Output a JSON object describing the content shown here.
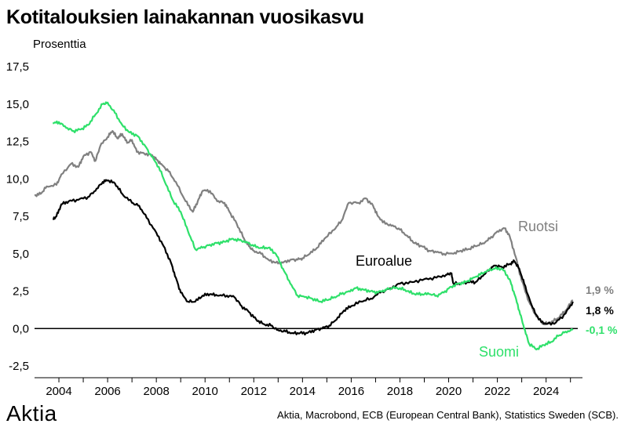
{
  "title": "Kotitalouksien lainakannan vuosikasvu",
  "unit_label": "Prosenttia",
  "logo": "Aktia",
  "source": "Aktia, Macrobond, ECB (European Central Bank), Statistics Sweden (SCB).",
  "colors": {
    "Ruotsi": "#808080",
    "Euroalue": "#000000",
    "Suomi": "#2ee06a"
  },
  "chart_data": {
    "type": "line",
    "title": "Kotitalouksien lainakannan vuosikasvu",
    "ylabel": "Prosenttia",
    "xlim": [
      2003,
      2025.3
    ],
    "ylim": [
      -2.5,
      17.5
    ],
    "y_ticks": [
      "17,5",
      "15,0",
      "12,5",
      "10,0",
      "7,5",
      "5,0",
      "2,5",
      "0,0",
      "-2,5"
    ],
    "x_ticks": [
      "2004",
      "2006",
      "2008",
      "2010",
      "2012",
      "2014",
      "2016",
      "2018",
      "2020",
      "2022",
      "2024"
    ],
    "grid": false,
    "series": [
      {
        "name": "Ruotsi",
        "end_label": "1,9 %",
        "points": [
          [
            2003.0,
            8.9
          ],
          [
            2003.25,
            9.0
          ],
          [
            2003.5,
            9.5
          ],
          [
            2003.9,
            9.6
          ],
          [
            2004.1,
            10.3
          ],
          [
            2004.5,
            11.0
          ],
          [
            2004.8,
            10.8
          ],
          [
            2005.0,
            11.5
          ],
          [
            2005.3,
            11.8
          ],
          [
            2005.5,
            11.2
          ],
          [
            2005.7,
            12.2
          ],
          [
            2006.0,
            12.8
          ],
          [
            2006.2,
            13.2
          ],
          [
            2006.4,
            12.7
          ],
          [
            2006.6,
            13.0
          ],
          [
            2006.8,
            12.4
          ],
          [
            2007.0,
            12.6
          ],
          [
            2007.2,
            11.8
          ],
          [
            2007.5,
            11.7
          ],
          [
            2007.8,
            11.6
          ],
          [
            2008.0,
            11.3
          ],
          [
            2008.2,
            11.0
          ],
          [
            2008.5,
            10.5
          ],
          [
            2008.8,
            9.8
          ],
          [
            2009.2,
            8.5
          ],
          [
            2009.5,
            7.8
          ],
          [
            2009.7,
            8.5
          ],
          [
            2009.9,
            9.2
          ],
          [
            2010.2,
            9.2
          ],
          [
            2010.5,
            8.5
          ],
          [
            2010.8,
            8.4
          ],
          [
            2011.0,
            7.8
          ],
          [
            2011.3,
            7.0
          ],
          [
            2011.6,
            6.0
          ],
          [
            2011.8,
            5.5
          ],
          [
            2012.0,
            5.2
          ],
          [
            2012.3,
            5.0
          ],
          [
            2012.6,
            4.6
          ],
          [
            2012.9,
            4.4
          ],
          [
            2013.2,
            4.4
          ],
          [
            2013.5,
            4.6
          ],
          [
            2013.8,
            4.6
          ],
          [
            2014.0,
            4.7
          ],
          [
            2014.3,
            5.0
          ],
          [
            2014.6,
            5.4
          ],
          [
            2014.9,
            6.0
          ],
          [
            2015.3,
            6.6
          ],
          [
            2015.6,
            7.2
          ],
          [
            2015.9,
            8.4
          ],
          [
            2016.3,
            8.4
          ],
          [
            2016.6,
            8.7
          ],
          [
            2016.9,
            8.2
          ],
          [
            2017.1,
            7.5
          ],
          [
            2017.4,
            7.0
          ],
          [
            2017.7,
            6.9
          ],
          [
            2018.0,
            6.6
          ],
          [
            2018.3,
            6.2
          ],
          [
            2018.6,
            5.7
          ],
          [
            2018.9,
            5.5
          ],
          [
            2019.2,
            5.2
          ],
          [
            2019.5,
            5.1
          ],
          [
            2019.8,
            5.0
          ],
          [
            2020.2,
            5.0
          ],
          [
            2020.5,
            5.2
          ],
          [
            2020.8,
            5.3
          ],
          [
            2021.1,
            5.5
          ],
          [
            2021.4,
            5.7
          ],
          [
            2021.7,
            6.0
          ],
          [
            2022.0,
            6.5
          ],
          [
            2022.3,
            6.7
          ],
          [
            2022.5,
            6.2
          ],
          [
            2022.75,
            4.8
          ],
          [
            2023.0,
            3.2
          ],
          [
            2023.3,
            1.8
          ],
          [
            2023.6,
            0.8
          ],
          [
            2023.9,
            0.3
          ],
          [
            2024.2,
            0.4
          ],
          [
            2024.5,
            0.7
          ],
          [
            2024.8,
            1.2
          ],
          [
            2025.1,
            1.9
          ]
        ]
      },
      {
        "name": "Euroalue",
        "end_label": "1,8 %",
        "points": [
          [
            2003.75,
            7.3
          ],
          [
            2003.9,
            7.5
          ],
          [
            2004.1,
            8.3
          ],
          [
            2004.4,
            8.5
          ],
          [
            2004.8,
            8.6
          ],
          [
            2005.2,
            8.8
          ],
          [
            2005.5,
            9.2
          ],
          [
            2005.8,
            9.8
          ],
          [
            2006.0,
            9.9
          ],
          [
            2006.3,
            9.7
          ],
          [
            2006.6,
            9.0
          ],
          [
            2007.0,
            8.4
          ],
          [
            2007.3,
            8.2
          ],
          [
            2007.6,
            7.4
          ],
          [
            2008.0,
            6.4
          ],
          [
            2008.3,
            5.5
          ],
          [
            2008.6,
            4.4
          ],
          [
            2008.8,
            3.4
          ],
          [
            2009.0,
            2.4
          ],
          [
            2009.3,
            1.8
          ],
          [
            2009.6,
            1.8
          ],
          [
            2009.9,
            2.2
          ],
          [
            2010.2,
            2.3
          ],
          [
            2010.5,
            2.2
          ],
          [
            2010.9,
            2.2
          ],
          [
            2011.2,
            2.1
          ],
          [
            2011.5,
            1.5
          ],
          [
            2011.8,
            1.1
          ],
          [
            2012.1,
            0.6
          ],
          [
            2012.4,
            0.3
          ],
          [
            2012.7,
            0.2
          ],
          [
            2013.0,
            -0.1
          ],
          [
            2013.3,
            -0.2
          ],
          [
            2013.6,
            -0.3
          ],
          [
            2013.9,
            -0.3
          ],
          [
            2014.2,
            -0.3
          ],
          [
            2014.5,
            -0.1
          ],
          [
            2014.8,
            0.0
          ],
          [
            2015.1,
            0.2
          ],
          [
            2015.4,
            0.6
          ],
          [
            2015.7,
            1.2
          ],
          [
            2016.0,
            1.5
          ],
          [
            2016.4,
            1.8
          ],
          [
            2016.8,
            2.0
          ],
          [
            2017.2,
            2.4
          ],
          [
            2017.6,
            2.7
          ],
          [
            2018.0,
            3.0
          ],
          [
            2018.5,
            3.1
          ],
          [
            2019.0,
            3.3
          ],
          [
            2019.5,
            3.4
          ],
          [
            2019.9,
            3.6
          ],
          [
            2020.1,
            3.7
          ],
          [
            2020.2,
            3.0
          ],
          [
            2020.5,
            3.0
          ],
          [
            2020.8,
            3.1
          ],
          [
            2021.1,
            3.1
          ],
          [
            2021.4,
            3.5
          ],
          [
            2021.7,
            4.0
          ],
          [
            2021.9,
            4.2
          ],
          [
            2022.2,
            4.1
          ],
          [
            2022.5,
            4.3
          ],
          [
            2022.7,
            4.5
          ],
          [
            2022.9,
            4.0
          ],
          [
            2023.1,
            3.0
          ],
          [
            2023.4,
            1.6
          ],
          [
            2023.7,
            0.6
          ],
          [
            2024.0,
            0.3
          ],
          [
            2024.4,
            0.4
          ],
          [
            2024.8,
            1.0
          ],
          [
            2025.1,
            1.8
          ]
        ]
      },
      {
        "name": "Suomi",
        "end_label": "-0,1 %",
        "points": [
          [
            2003.75,
            13.7
          ],
          [
            2004.0,
            13.8
          ],
          [
            2004.3,
            13.4
          ],
          [
            2004.6,
            13.2
          ],
          [
            2004.9,
            13.3
          ],
          [
            2005.2,
            13.6
          ],
          [
            2005.5,
            14.3
          ],
          [
            2005.8,
            15.0
          ],
          [
            2006.0,
            15.1
          ],
          [
            2006.3,
            14.4
          ],
          [
            2006.6,
            13.6
          ],
          [
            2006.9,
            13.1
          ],
          [
            2007.2,
            12.9
          ],
          [
            2007.5,
            12.3
          ],
          [
            2007.8,
            11.5
          ],
          [
            2008.1,
            10.8
          ],
          [
            2008.4,
            9.6
          ],
          [
            2008.7,
            8.5
          ],
          [
            2009.0,
            7.8
          ],
          [
            2009.3,
            6.5
          ],
          [
            2009.6,
            5.3
          ],
          [
            2009.9,
            5.4
          ],
          [
            2010.2,
            5.6
          ],
          [
            2010.5,
            5.7
          ],
          [
            2010.8,
            5.8
          ],
          [
            2011.1,
            6.0
          ],
          [
            2011.4,
            5.9
          ],
          [
            2011.7,
            5.8
          ],
          [
            2012.0,
            5.5
          ],
          [
            2012.3,
            5.4
          ],
          [
            2012.6,
            5.4
          ],
          [
            2012.9,
            5.0
          ],
          [
            2013.2,
            4.0
          ],
          [
            2013.5,
            3.0
          ],
          [
            2013.8,
            2.2
          ],
          [
            2014.1,
            2.1
          ],
          [
            2014.4,
            2.0
          ],
          [
            2014.7,
            1.8
          ],
          [
            2015.0,
            1.9
          ],
          [
            2015.3,
            2.1
          ],
          [
            2015.6,
            2.3
          ],
          [
            2015.9,
            2.5
          ],
          [
            2016.2,
            2.7
          ],
          [
            2016.5,
            2.6
          ],
          [
            2016.8,
            2.5
          ],
          [
            2017.1,
            2.4
          ],
          [
            2017.4,
            2.6
          ],
          [
            2017.7,
            2.7
          ],
          [
            2018.0,
            2.7
          ],
          [
            2018.3,
            2.5
          ],
          [
            2018.6,
            2.3
          ],
          [
            2018.9,
            2.3
          ],
          [
            2019.2,
            2.3
          ],
          [
            2019.5,
            2.2
          ],
          [
            2019.8,
            2.4
          ],
          [
            2020.1,
            2.8
          ],
          [
            2020.4,
            3.0
          ],
          [
            2020.7,
            3.1
          ],
          [
            2021.0,
            3.4
          ],
          [
            2021.3,
            3.6
          ],
          [
            2021.6,
            3.9
          ],
          [
            2021.9,
            4.0
          ],
          [
            2022.2,
            4.0
          ],
          [
            2022.5,
            3.3
          ],
          [
            2022.7,
            2.3
          ],
          [
            2022.9,
            1.2
          ],
          [
            2023.1,
            0.0
          ],
          [
            2023.3,
            -1.0
          ],
          [
            2023.6,
            -1.4
          ],
          [
            2023.9,
            -1.1
          ],
          [
            2024.2,
            -0.9
          ],
          [
            2024.5,
            -0.5
          ],
          [
            2024.8,
            -0.2
          ],
          [
            2025.1,
            -0.1
          ]
        ]
      }
    ]
  }
}
